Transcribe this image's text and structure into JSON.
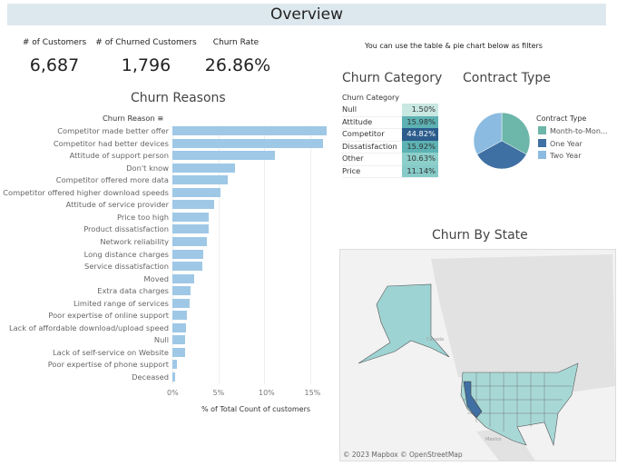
{
  "header": {
    "title": "Overview"
  },
  "kpis": [
    {
      "label": "# of Customers",
      "value": "6,687"
    },
    {
      "label": "# of Churned Customers",
      "value": "1,796"
    },
    {
      "label": "Churn Rate",
      "value": "26.86%"
    }
  ],
  "filter_note": "You can use the table & pie chart below as filters",
  "chart_data": [
    {
      "type": "bar",
      "title": "Churn Reasons",
      "orientation": "horizontal",
      "ylabel": "Churn Reason",
      "xlabel": "% of Total Count of customers",
      "xlim": [
        0,
        17
      ],
      "xticks": [
        "0%",
        "5%",
        "10%",
        "15%"
      ],
      "color": "#9fc8e6",
      "categories": [
        "Competitor made better offer",
        "Competitor had better devices",
        "Attitude of support person",
        "Don't know",
        "Competitor offered more data",
        "Competitor offered higher download speeds",
        "Attitude of service provider",
        "Price too high",
        "Product dissatisfaction",
        "Network reliability",
        "Long distance charges",
        "Service dissatisfaction",
        "Moved",
        "Extra data charges",
        "Limited range of services",
        "Poor expertise of online support",
        "Lack of affordable download/upload speed",
        "Null",
        "Lack of self-service on Website",
        "Poor expertise of phone support",
        "Deceased"
      ],
      "values": [
        16.8,
        16.4,
        11.2,
        6.8,
        6.0,
        5.2,
        4.6,
        4.0,
        4.0,
        3.8,
        3.4,
        3.3,
        2.4,
        2.0,
        1.9,
        1.6,
        1.5,
        1.4,
        1.4,
        0.5,
        0.3
      ]
    },
    {
      "type": "table",
      "title": "Churn Category",
      "header": "Churn Category",
      "rows": [
        {
          "name": "Null",
          "value": "1.50%",
          "color": "#c8e8e1"
        },
        {
          "name": "Attitude",
          "value": "15.98%",
          "color": "#5db2b3"
        },
        {
          "name": "Competitor",
          "value": "44.82%",
          "color": "#2b5c8c",
          "selected": true
        },
        {
          "name": "Dissatisfaction",
          "value": "15.92%",
          "color": "#5db2b3"
        },
        {
          "name": "Other",
          "value": "10.63%",
          "color": "#8ccfca"
        },
        {
          "name": "Price",
          "value": "11.14%",
          "color": "#87cbc9"
        }
      ]
    },
    {
      "type": "pie",
      "title": "Contract Type",
      "legend_title": "Contract Type",
      "legend_placement": "right",
      "slices": [
        {
          "name": "Month-to-Mon...",
          "value": 33,
          "color": "#6cb6aa"
        },
        {
          "name": "One Year",
          "value": 34,
          "color": "#3f70a3"
        },
        {
          "name": "Two Year",
          "value": 33,
          "color": "#8bbbe0"
        }
      ]
    }
  ],
  "map": {
    "title": "Churn By State",
    "labels": {
      "canada": "Canada",
      "mexico": "Mexico"
    },
    "attribution": "© 2023 Mapbox  © OpenStreetMap",
    "highlight_color": "#3f6fa3",
    "base_color": "#9ed3d3"
  },
  "icons": {
    "sort": "sort-descending-icon"
  }
}
